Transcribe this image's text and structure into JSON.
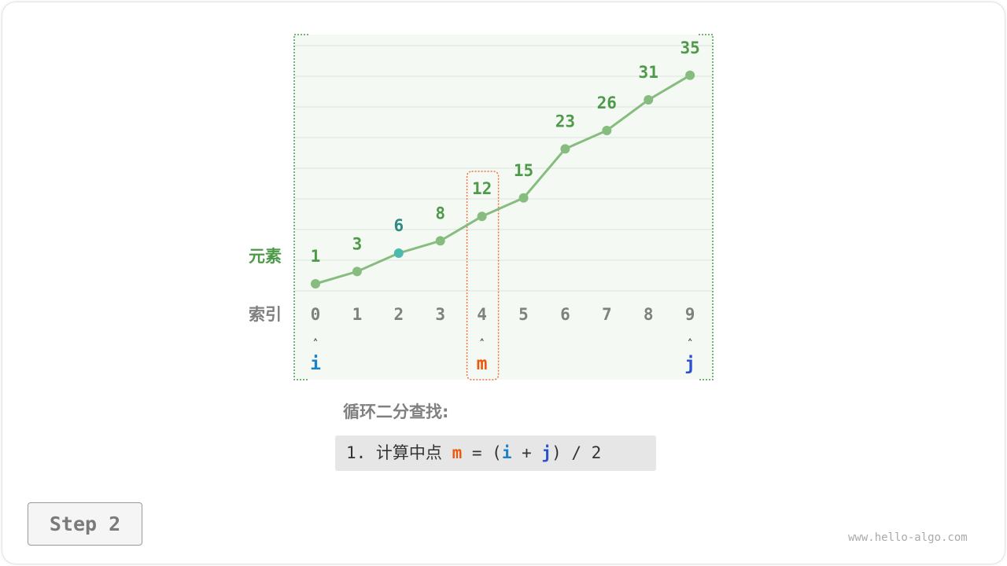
{
  "diagram": {
    "row_labels": {
      "elements": "元素",
      "indices": "索引"
    },
    "values": [
      1,
      3,
      6,
      8,
      12,
      15,
      23,
      26,
      31,
      35
    ],
    "indices": [
      "0",
      "1",
      "2",
      "3",
      "4",
      "5",
      "6",
      "7",
      "8",
      "9"
    ],
    "highlight_index": 2,
    "pointers": [
      {
        "label": "i",
        "index": 0,
        "color": "#1a82c8"
      },
      {
        "label": "m",
        "index": 4,
        "color": "#e85a10"
      },
      {
        "label": "j",
        "index": 9,
        "color": "#2c4fd0"
      }
    ],
    "pointer_arrow": "˄",
    "colors": {
      "line": "#86bd7f",
      "value_text": "#4e9a4a",
      "highlight_dot": "#4dbaad",
      "highlight_text": "#2f8a80",
      "index_text": "#808080",
      "mid_box": "#f07040",
      "bg": "#f4f9f4"
    }
  },
  "section_title": "循环二分查找:",
  "code": {
    "prefix": "1. 计算中点 ",
    "m": "m",
    "eq": " = (",
    "i": "i",
    "plus": " + ",
    "j": "j",
    "suffix": ") / 2"
  },
  "step_button": "Step 2",
  "watermark": "www.hello-algo.com"
}
